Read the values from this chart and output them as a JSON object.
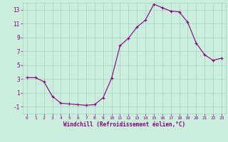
{
  "x": [
    0,
    1,
    2,
    3,
    4,
    5,
    6,
    7,
    8,
    9,
    10,
    11,
    12,
    13,
    14,
    15,
    16,
    17,
    18,
    19,
    20,
    21,
    22,
    23
  ],
  "y": [
    3.2,
    3.2,
    2.6,
    0.5,
    -0.5,
    -0.6,
    -0.7,
    -0.8,
    -0.7,
    0.3,
    3.1,
    7.8,
    8.9,
    10.5,
    11.5,
    13.8,
    13.3,
    12.8,
    12.7,
    11.2,
    8.2,
    6.5,
    5.7,
    6.0
  ],
  "xlabel": "Windchill (Refroidissement éolien,°C)",
  "ylabel": "",
  "ylim": [
    -2,
    14
  ],
  "xlim": [
    -0.5,
    23.5
  ],
  "yticks": [
    -1,
    1,
    3,
    5,
    7,
    9,
    11,
    13
  ],
  "xticks": [
    0,
    1,
    2,
    3,
    4,
    5,
    6,
    7,
    8,
    9,
    10,
    11,
    12,
    13,
    14,
    15,
    16,
    17,
    18,
    19,
    20,
    21,
    22,
    23
  ],
  "line_color": "#800080",
  "marker": "+",
  "bg_color": "#cceedd",
  "grid_color": "#aacccc",
  "tick_label_color": "#800080",
  "xlabel_color": "#800080",
  "figsize": [
    3.2,
    2.0
  ],
  "dpi": 100
}
